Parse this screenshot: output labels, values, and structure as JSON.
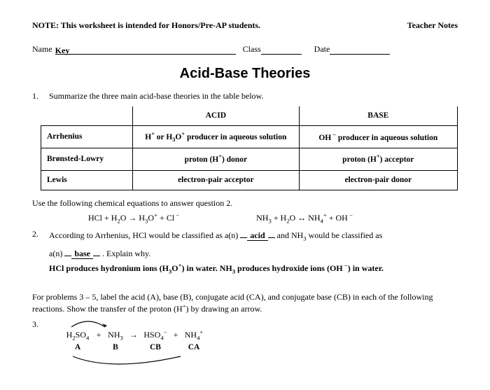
{
  "header": {
    "note": "NOTE: This worksheet is intended for Honors/Pre-AP students.",
    "teacher": "Teacher Notes"
  },
  "nameline": {
    "name_label": "Name",
    "name_value": "Key",
    "class_label": "Class",
    "date_label": "Date"
  },
  "title": "Acid-Base Theories",
  "q1": {
    "num": "1.",
    "text": "Summarize the three main acid-base theories in the table below.",
    "th_acid": "ACID",
    "th_base": "BASE",
    "rows": [
      {
        "name": "Arrhenius",
        "acid_html": "H<sup>+</sup> or H<sub>3</sub>O<sup>+</sup> producer in aqueous solution",
        "base_html": "OH<sup>&nbsp;−</sup> producer in aqueous solution"
      },
      {
        "name": "Brønsted-Lowry",
        "acid_html": "proton (H<sup>+</sup>) donor",
        "base_html": "proton (H<sup>+</sup>) acceptor"
      },
      {
        "name": "Lewis",
        "acid_html": "electron-pair acceptor",
        "base_html": "electron-pair donor"
      }
    ]
  },
  "intro2": "Use the following chemical equations to answer question 2.",
  "eq": {
    "eq1_html": "HCl + H<sub>2</sub>O → H<sub>3</sub>O<sup>+</sup> + Cl<sup>&nbsp;−</sup>",
    "eq2_html": "NH<sub>3</sub> + H<sub>2</sub>O ↔ NH<sub>4</sub><sup>+</sup> + OH<sup>&nbsp;−</sup>"
  },
  "q2": {
    "num": "2.",
    "pre": "According to Arrhenius, HCl would be classified as a(n) ",
    "ans1": "acid",
    "mid": " and NH<sub>3</sub> would be classified as",
    "line2_pre": "a(n) ",
    "ans2": "base",
    "line2_post": ".  Explain why.",
    "expl_html": "HCl produces hydronium ions (H<sub>3</sub>O<sup>+</sup>) in water.  NH<sub>3</sub> produces hydroxide ions (OH<sup>&nbsp;−</sup>) in water."
  },
  "intro3": "For problems 3 – 5, label the acid (A), base (B), conjugate acid (CA), and conjugate base (CB) in each of the following reactions.  Show the transfer of the proton (H<sup>+</sup>) by drawing an arrow.",
  "q3": {
    "num": "3.",
    "species": [
      "H<sub>2</sub>SO<sub>4</sub>",
      "+",
      "NH<sub>3</sub>",
      "→",
      "HSO<sub>4</sub><sup>−</sup>",
      "+",
      "NH<sub>4</sub><sup>+</sup>"
    ],
    "labels": [
      "A",
      "B",
      "CB",
      "CA"
    ],
    "widths": [
      42,
      18,
      30,
      22,
      40,
      18,
      34
    ],
    "label_widths": [
      42,
      18,
      30,
      22,
      40,
      18,
      34
    ]
  }
}
